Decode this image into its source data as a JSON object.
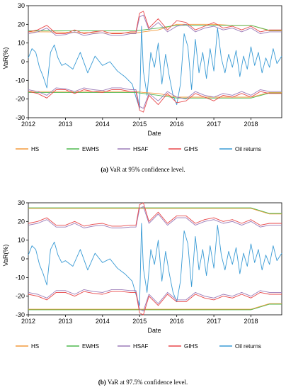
{
  "chart_data": [
    {
      "type": "line",
      "panel": "a",
      "caption_label": "(a)",
      "caption_text": "VaR at 95% confidence level.",
      "xlabel": "Date",
      "ylabel": "VaR(%)",
      "ylim": [
        -30,
        30
      ],
      "yticks": [
        30,
        20,
        10,
        0,
        -10,
        -20,
        -30
      ],
      "xlim": [
        2012,
        2018.83
      ],
      "xticks": [
        2012,
        2013,
        2014,
        2015,
        2016,
        2017,
        2018
      ],
      "legend_position": "bottom",
      "series": [
        {
          "name": "HS",
          "color": "#f39a3c",
          "x": [
            2012,
            2012.5,
            2013,
            2013.5,
            2014,
            2014.5,
            2014.9,
            2015.1,
            2015.5,
            2016,
            2016.5,
            2017,
            2017.5,
            2018,
            2018.5,
            2018.83
          ],
          "y": [
            16,
            16,
            15.8,
            15.6,
            15.4,
            15.4,
            15.4,
            16,
            17,
            20,
            20,
            20,
            19.5,
            19.5,
            16.5,
            16.5
          ]
        },
        {
          "name": "EWHS",
          "color": "#4fb84f",
          "x": [
            2012,
            2014.9,
            2015.1,
            2015.5,
            2016,
            2017,
            2018,
            2018.5,
            2018.83
          ],
          "y": [
            16.5,
            16.5,
            17,
            18,
            19.5,
            19.5,
            19.5,
            16.8,
            16.8
          ]
        },
        {
          "name": "HSAF",
          "color": "#9b7bb8",
          "x": [
            2012,
            2012.25,
            2012.5,
            2012.75,
            2013,
            2013.25,
            2013.5,
            2013.75,
            2014,
            2014.25,
            2014.5,
            2014.75,
            2014.9,
            2015,
            2015.1,
            2015.25,
            2015.5,
            2015.75,
            2016,
            2016.25,
            2016.5,
            2016.75,
            2017,
            2017.25,
            2017.5,
            2017.75,
            2018,
            2018.25,
            2018.5,
            2018.83
          ],
          "y": [
            15,
            16,
            18,
            14,
            14.5,
            16,
            14,
            15,
            15.5,
            14,
            14,
            15,
            15,
            24,
            25,
            17,
            21,
            16,
            19,
            20,
            16,
            18,
            19,
            17,
            18,
            16,
            18,
            15,
            16,
            16
          ]
        },
        {
          "name": "GIHS",
          "color": "#e8474a",
          "x": [
            2012,
            2012.25,
            2012.5,
            2012.75,
            2013,
            2013.25,
            2013.5,
            2013.75,
            2014,
            2014.25,
            2014.5,
            2014.75,
            2014.9,
            2015,
            2015.1,
            2015.25,
            2015.5,
            2015.75,
            2016,
            2016.25,
            2016.5,
            2016.75,
            2017,
            2017.25,
            2017.5,
            2017.75,
            2018,
            2018.25,
            2018.5,
            2018.83
          ],
          "y": [
            16,
            17,
            19.5,
            15,
            15,
            17,
            15,
            16,
            16.5,
            15,
            15,
            16,
            16,
            26,
            27,
            18,
            23,
            17,
            22,
            21,
            17,
            19,
            21,
            18,
            19,
            17,
            19,
            16,
            17,
            17
          ]
        },
        {
          "name": "Oil returns",
          "color": "#3a9bd5",
          "x": [
            2012,
            2012.1,
            2012.2,
            2012.3,
            2012.4,
            2012.5,
            2012.6,
            2012.7,
            2012.8,
            2012.9,
            2013,
            2013.2,
            2013.4,
            2013.6,
            2013.8,
            2014,
            2014.2,
            2014.4,
            2014.6,
            2014.8,
            2014.9,
            2015,
            2015.05,
            2015.1,
            2015.2,
            2015.3,
            2015.4,
            2015.5,
            2015.6,
            2015.7,
            2015.8,
            2015.9,
            2016,
            2016.1,
            2016.2,
            2016.3,
            2016.4,
            2016.5,
            2016.6,
            2016.7,
            2016.8,
            2016.9,
            2017,
            2017.1,
            2017.2,
            2017.3,
            2017.4,
            2017.5,
            2017.6,
            2017.7,
            2017.8,
            2017.9,
            2018,
            2018.1,
            2018.2,
            2018.3,
            2018.4,
            2018.5,
            2018.6,
            2018.7,
            2018.83
          ],
          "y": [
            2,
            7,
            5,
            -3,
            -8,
            -14,
            5,
            9,
            2,
            -2,
            -1,
            -4,
            5,
            -6,
            3,
            -2,
            0,
            -5,
            -8,
            -12,
            -19,
            -25,
            19,
            -5,
            -18,
            5,
            -3,
            10,
            -12,
            4,
            -8,
            -18,
            -23,
            -12,
            15,
            8,
            -15,
            12,
            -6,
            5,
            -9,
            7,
            -5,
            18,
            2,
            -6,
            4,
            -3,
            6,
            -8,
            3,
            -4,
            8,
            -2,
            5,
            -6,
            2,
            -3,
            7,
            -1,
            3
          ]
        },
        {
          "name": "HS-lower",
          "legend": false,
          "color": "#f39a3c",
          "x": [
            2012,
            2014.9,
            2015.1,
            2015.5,
            2016,
            2017,
            2018,
            2018.5,
            2018.83
          ],
          "y": [
            -16,
            -16,
            -16.5,
            -17,
            -19,
            -19,
            -19,
            -16.5,
            -16.5
          ]
        },
        {
          "name": "EWHS-lower",
          "legend": false,
          "color": "#4fb84f",
          "x": [
            2012,
            2014.9,
            2015.1,
            2015.5,
            2016,
            2017,
            2018,
            2018.5,
            2018.83
          ],
          "y": [
            -16.5,
            -16.5,
            -17,
            -18,
            -19.5,
            -19.5,
            -19.5,
            -16.8,
            -16.8
          ]
        },
        {
          "name": "HSAF-lower",
          "legend": false,
          "color": "#9b7bb8",
          "x": [
            2012,
            2012.25,
            2012.5,
            2012.75,
            2013,
            2013.25,
            2013.5,
            2013.75,
            2014,
            2014.25,
            2014.5,
            2014.75,
            2014.9,
            2015,
            2015.1,
            2015.25,
            2015.5,
            2015.75,
            2016,
            2016.25,
            2016.5,
            2016.75,
            2017,
            2017.25,
            2017.5,
            2017.75,
            2018,
            2018.25,
            2018.5,
            2018.83
          ],
          "y": [
            -15,
            -16,
            -18,
            -14,
            -14.5,
            -16,
            -14,
            -15,
            -15.5,
            -14,
            -14,
            -15,
            -15,
            -24,
            -25,
            -17,
            -21,
            -16,
            -19,
            -20,
            -16,
            -18,
            -19,
            -17,
            -18,
            -16,
            -18,
            -15,
            -16,
            -16
          ]
        },
        {
          "name": "GIHS-lower",
          "legend": false,
          "color": "#e8474a",
          "x": [
            2012,
            2012.25,
            2012.5,
            2012.75,
            2013,
            2013.25,
            2013.5,
            2013.75,
            2014,
            2014.25,
            2014.5,
            2014.75,
            2014.9,
            2015,
            2015.1,
            2015.25,
            2015.5,
            2015.75,
            2016,
            2016.25,
            2016.5,
            2016.75,
            2017,
            2017.25,
            2017.5,
            2017.75,
            2018,
            2018.25,
            2018.5,
            2018.83
          ],
          "y": [
            -16,
            -17,
            -19.5,
            -15,
            -15,
            -17,
            -15,
            -16,
            -16.5,
            -15,
            -15,
            -16,
            -16,
            -26,
            -27,
            -18,
            -23,
            -17,
            -22,
            -21,
            -17,
            -19,
            -21,
            -18,
            -19,
            -17,
            -19,
            -16,
            -17,
            -17
          ]
        }
      ]
    },
    {
      "type": "line",
      "panel": "b",
      "caption_label": "(b)",
      "caption_text": "VaR at 97.5% confidence level.",
      "xlabel": "Date",
      "ylabel": "VaR(%)",
      "ylim": [
        -30,
        30
      ],
      "yticks": [
        30,
        20,
        10,
        0,
        -10,
        -20,
        -30
      ],
      "xlim": [
        2012,
        2018.83
      ],
      "xticks": [
        2012,
        2013,
        2014,
        2015,
        2016,
        2017,
        2018
      ],
      "legend_position": "bottom",
      "series": [
        {
          "name": "HS",
          "color": "#f39a3c",
          "x": [
            2012,
            2014.9,
            2015.1,
            2016,
            2017,
            2018,
            2018.5,
            2018.83
          ],
          "y": [
            27,
            27,
            27,
            27,
            27,
            27,
            24,
            24
          ]
        },
        {
          "name": "EWHS",
          "color": "#4fb84f",
          "x": [
            2012,
            2014.9,
            2015.1,
            2016,
            2017,
            2018,
            2018.5,
            2018.83
          ],
          "y": [
            27.3,
            27.3,
            27.3,
            27.3,
            27.3,
            27.3,
            24.3,
            24.3
          ]
        },
        {
          "name": "HSAF",
          "color": "#9b7bb8",
          "x": [
            2012,
            2012.25,
            2012.5,
            2012.75,
            2013,
            2013.25,
            2013.5,
            2013.75,
            2014,
            2014.25,
            2014.5,
            2014.75,
            2014.9,
            2015,
            2015.1,
            2015.25,
            2015.5,
            2015.75,
            2016,
            2016.25,
            2016.5,
            2016.75,
            2017,
            2017.25,
            2017.5,
            2017.75,
            2018,
            2018.25,
            2018.5,
            2018.83
          ],
          "y": [
            18,
            19,
            21,
            17,
            17,
            19,
            16.5,
            17.5,
            18,
            16.5,
            16.5,
            17,
            17,
            27,
            28,
            19,
            24,
            18,
            22,
            22,
            18,
            20,
            21,
            19,
            20,
            18,
            20,
            17,
            18,
            18
          ]
        },
        {
          "name": "GIHS",
          "color": "#e8474a",
          "x": [
            2012,
            2012.25,
            2012.5,
            2012.75,
            2013,
            2013.25,
            2013.5,
            2013.75,
            2014,
            2014.25,
            2014.5,
            2014.75,
            2014.9,
            2015,
            2015.1,
            2015.25,
            2015.5,
            2015.75,
            2016,
            2016.25,
            2016.5,
            2016.75,
            2017,
            2017.25,
            2017.5,
            2017.75,
            2018,
            2018.25,
            2018.5,
            2018.83
          ],
          "y": [
            19,
            20,
            22,
            18,
            18,
            20,
            17.5,
            18.5,
            19,
            17.5,
            17.5,
            18,
            18,
            29,
            30,
            20,
            25,
            19,
            23,
            23,
            19,
            21,
            22,
            20,
            21,
            19,
            21,
            18,
            19,
            19
          ]
        },
        {
          "name": "Oil returns",
          "color": "#3a9bd5",
          "x": [
            2012,
            2012.1,
            2012.2,
            2012.3,
            2012.4,
            2012.5,
            2012.6,
            2012.7,
            2012.8,
            2012.9,
            2013,
            2013.2,
            2013.4,
            2013.6,
            2013.8,
            2014,
            2014.2,
            2014.4,
            2014.6,
            2014.8,
            2014.9,
            2015,
            2015.05,
            2015.1,
            2015.2,
            2015.3,
            2015.4,
            2015.5,
            2015.6,
            2015.7,
            2015.8,
            2015.9,
            2016,
            2016.1,
            2016.2,
            2016.3,
            2016.4,
            2016.5,
            2016.6,
            2016.7,
            2016.8,
            2016.9,
            2017,
            2017.1,
            2017.2,
            2017.3,
            2017.4,
            2017.5,
            2017.6,
            2017.7,
            2017.8,
            2017.9,
            2018,
            2018.1,
            2018.2,
            2018.3,
            2018.4,
            2018.5,
            2018.6,
            2018.7,
            2018.83
          ],
          "y": [
            2,
            7,
            5,
            -3,
            -8,
            -14,
            5,
            9,
            2,
            -2,
            -1,
            -4,
            5,
            -6,
            3,
            -2,
            0,
            -5,
            -8,
            -12,
            -19,
            -25,
            19,
            -5,
            -18,
            5,
            -3,
            10,
            -12,
            4,
            -8,
            -18,
            -23,
            -12,
            15,
            8,
            -15,
            12,
            -6,
            5,
            -9,
            7,
            -5,
            18,
            2,
            -6,
            4,
            -3,
            6,
            -8,
            3,
            -4,
            8,
            -2,
            5,
            -6,
            2,
            -3,
            7,
            -1,
            3
          ]
        },
        {
          "name": "HS-lower",
          "legend": false,
          "color": "#f39a3c",
          "x": [
            2012,
            2014.9,
            2015.1,
            2016,
            2017,
            2018,
            2018.5,
            2018.83
          ],
          "y": [
            -27,
            -27,
            -27,
            -27,
            -27,
            -27,
            -24,
            -24
          ]
        },
        {
          "name": "EWHS-lower",
          "legend": false,
          "color": "#4fb84f",
          "x": [
            2012,
            2014.9,
            2015.1,
            2016,
            2017,
            2018,
            2018.5,
            2018.83
          ],
          "y": [
            -27.3,
            -27.3,
            -27.3,
            -27.3,
            -27.3,
            -27.3,
            -24.3,
            -24.3
          ]
        },
        {
          "name": "HSAF-lower",
          "legend": false,
          "color": "#9b7bb8",
          "x": [
            2012,
            2012.25,
            2012.5,
            2012.75,
            2013,
            2013.25,
            2013.5,
            2013.75,
            2014,
            2014.25,
            2014.5,
            2014.75,
            2014.9,
            2015,
            2015.1,
            2015.25,
            2015.5,
            2015.75,
            2016,
            2016.25,
            2016.5,
            2016.75,
            2017,
            2017.25,
            2017.5,
            2017.75,
            2018,
            2018.25,
            2018.5,
            2018.83
          ],
          "y": [
            -18,
            -19,
            -21,
            -17,
            -17,
            -19,
            -16.5,
            -17.5,
            -18,
            -16.5,
            -16.5,
            -17,
            -17,
            -27,
            -28,
            -19,
            -24,
            -18,
            -22,
            -22,
            -18,
            -20,
            -21,
            -19,
            -20,
            -18,
            -20,
            -17,
            -18,
            -18
          ]
        },
        {
          "name": "GIHS-lower",
          "legend": false,
          "color": "#e8474a",
          "x": [
            2012,
            2012.25,
            2012.5,
            2012.75,
            2013,
            2013.25,
            2013.5,
            2013.75,
            2014,
            2014.25,
            2014.5,
            2014.75,
            2014.9,
            2015,
            2015.1,
            2015.25,
            2015.5,
            2015.75,
            2016,
            2016.25,
            2016.5,
            2016.75,
            2017,
            2017.25,
            2017.5,
            2017.75,
            2018,
            2018.25,
            2018.5,
            2018.83
          ],
          "y": [
            -19,
            -20,
            -22,
            -18,
            -18,
            -20,
            -17.5,
            -18.5,
            -19,
            -17.5,
            -17.5,
            -18,
            -18,
            -29,
            -30,
            -20,
            -25,
            -19,
            -23,
            -23,
            -19,
            -21,
            -22,
            -20,
            -21,
            -19,
            -21,
            -18,
            -19,
            -19
          ]
        }
      ]
    }
  ]
}
